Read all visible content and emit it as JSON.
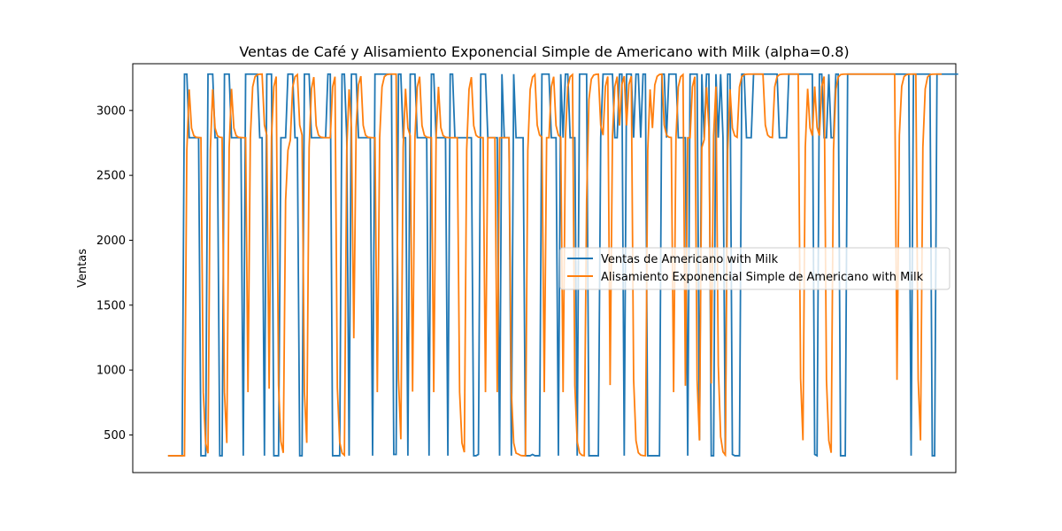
{
  "chart_data": {
    "type": "line",
    "title": "Ventas de Café y Alisamiento Exponencial Simple de Americano with Milk (alpha=0.8)",
    "xlabel": "",
    "ylabel": "Ventas",
    "ylim": [
      210,
      3360
    ],
    "yticks": [
      500,
      1000,
      1500,
      2000,
      2500,
      3000
    ],
    "xlim": [
      -15,
      335
    ],
    "legend_position": "center-right",
    "colors": {
      "raw": "#1f77b4",
      "smoothed": "#ff7f0e"
    },
    "alpha": 0.8,
    "series": [
      {
        "name": "Ventas de Americano with Milk",
        "values": [
          340,
          340,
          340,
          340,
          340,
          340,
          340,
          3280,
          3280,
          2790,
          2790,
          2790,
          2790,
          2790,
          340,
          340,
          340,
          3280,
          3280,
          3280,
          2790,
          2790,
          340,
          340,
          3280,
          3280,
          3280,
          2790,
          2790,
          2790,
          2790,
          2790,
          340,
          3280,
          3280,
          3280,
          3280,
          3280,
          3280,
          2790,
          2790,
          340,
          3280,
          3280,
          3280,
          340,
          340,
          340,
          2790,
          2790,
          2790,
          3280,
          3280,
          3280,
          2790,
          2790,
          340,
          340,
          3280,
          3280,
          3280,
          2790,
          2790,
          2790,
          2790,
          2790,
          2790,
          2790,
          3280,
          3280,
          340,
          340,
          340,
          340,
          3280,
          3280,
          2790,
          340,
          3280,
          3280,
          3280,
          2790,
          2790,
          2790,
          2790,
          2790,
          2790,
          340,
          3280,
          3280,
          3280,
          3280,
          3280,
          3280,
          3280,
          3280,
          350,
          350,
          3280,
          3280,
          2790,
          2790,
          340,
          3280,
          3280,
          3280,
          2790,
          2790,
          2790,
          2790,
          2790,
          340,
          3280,
          3280,
          2790,
          2790,
          2790,
          2790,
          2790,
          340,
          3280,
          3280,
          2790,
          2790,
          2790,
          2790,
          2790,
          2790,
          2790,
          2790,
          340,
          340,
          350,
          3280,
          3280,
          3280,
          2790,
          2790,
          2790,
          2790,
          2790,
          340,
          3280,
          2790,
          2790,
          2790,
          340,
          3280,
          2790,
          2790,
          2790,
          2790,
          340,
          340,
          340,
          350,
          340,
          340,
          340,
          3280,
          3280,
          3280,
          3280,
          2790,
          2790,
          2790,
          340,
          3280,
          2790,
          3280,
          3280,
          2790,
          2790,
          2790,
          340,
          3280,
          3280,
          3280,
          3280,
          340,
          340,
          340,
          340,
          340,
          2790,
          3280,
          3280,
          3280,
          3280,
          3280,
          2790,
          2790,
          3280,
          3280,
          340,
          3280,
          3280,
          3280,
          2790,
          3280,
          3280,
          2790,
          3280,
          3280,
          340,
          340,
          340,
          340,
          340,
          340,
          3280,
          3280,
          2790,
          3280,
          3280,
          3280,
          3280,
          2790,
          2790,
          2790,
          2790,
          340,
          3280,
          3280,
          3280,
          3280,
          460,
          3280,
          2790,
          3280,
          3280,
          340,
          340,
          3280,
          2790,
          3280,
          2790,
          340,
          3280,
          3280,
          350,
          340,
          340,
          340,
          3280,
          3280,
          2790,
          2790,
          2790,
          3280,
          3280,
          3280,
          3280,
          3280,
          3280,
          3280,
          3280,
          3280,
          3280,
          3280,
          2790,
          2790,
          2790,
          2790,
          3280,
          3280,
          3280,
          3280,
          3280,
          3280,
          3280,
          3280,
          3280,
          3280,
          3280,
          350,
          340,
          3280,
          3280,
          2790,
          2790,
          3280,
          2790,
          2790,
          3280,
          3280,
          340,
          340,
          340,
          3280,
          3280,
          3280,
          3280,
          3280,
          3280,
          3280,
          3280,
          3280,
          3280,
          3280,
          3280,
          3280,
          3280,
          3280,
          3280,
          3280,
          3280,
          3280,
          3280,
          3280,
          3280,
          3280,
          3280,
          3280,
          3280,
          3280,
          340,
          3280,
          3280,
          3280,
          3280,
          3280,
          3280,
          3280,
          3280,
          340,
          340,
          3280,
          3280,
          3280,
          3280,
          3280,
          3280,
          3280,
          3280,
          3280,
          3280
        ]
      },
      {
        "name": "Alisamiento Exponencial Simple de Americano with Milk",
        "values": [
          340,
          340,
          340,
          340,
          340,
          340,
          340,
          340,
          2692,
          3162,
          2864,
          2805,
          2793,
          2791,
          2790,
          830,
          438,
          359,
          2696,
          3163,
          2865,
          2805,
          2793,
          2791,
          830,
          438,
          2712,
          3166,
          2865,
          2805,
          2793,
          2791,
          2790,
          2790,
          830,
          2790,
          3182,
          3260,
          3276,
          3279,
          3280,
          2888,
          2810,
          856,
          2795,
          3183,
          3261,
          884,
          449,
          362,
          2304,
          2693,
          2771,
          3178,
          3260,
          3276,
          2887,
          2810,
          834,
          439,
          2712,
          3167,
          3257,
          2884,
          2809,
          2794,
          2791,
          2790,
          2790,
          2790,
          3182,
          3260,
          864,
          445,
          361,
          344,
          2693,
          3163,
          2865,
          1245,
          2873,
          3199,
          3264,
          2885,
          2809,
          2794,
          2791,
          2790,
          2790,
          830,
          2790,
          3182,
          3260,
          3276,
          3279,
          3280,
          3280,
          3280,
          936,
          467,
          2717,
          3167,
          2865,
          2805,
          834,
          2791,
          3182,
          3260,
          2884,
          2809,
          2794,
          2791,
          2790,
          830,
          2790,
          3182,
          2868,
          2806,
          2793,
          2791,
          2790,
          2790,
          2790,
          2790,
          830,
          438,
          367,
          2697,
          3163,
          3257,
          2883,
          2809,
          2794,
          2791,
          2790,
          830,
          2790,
          2790,
          2790,
          2790,
          830,
          2790,
          2790,
          2790,
          2790,
          2790,
          830,
          438,
          360,
          352,
          342,
          340,
          340,
          2692,
          3162,
          3257,
          3276,
          2887,
          2810,
          2794,
          830,
          2790,
          2790,
          3182,
          3260,
          2884,
          2809,
          2794,
          830,
          2790,
          3182,
          3260,
          3276,
          883,
          449,
          362,
          344,
          341,
          2300,
          3084,
          3241,
          3272,
          3278,
          3279,
          2888,
          2810,
          3186,
          3261,
          884,
          2801,
          3184,
          3261,
          2884,
          3201,
          3264,
          2885,
          3201,
          3264,
          925,
          457,
          363,
          345,
          341,
          340,
          2692,
          3162,
          2864,
          3197,
          3263,
          3277,
          3279,
          2888,
          2810,
          2794,
          2791,
          830,
          2790,
          3182,
          3260,
          3276,
          879,
          2790,
          2790,
          3182,
          3260,
          924,
          457,
          2715,
          2775,
          3179,
          2868,
          896,
          2803,
          3184,
          1037,
          487,
          369,
          346,
          2693,
          3163,
          2864,
          2805,
          2793,
          3182,
          3260,
          3276,
          3279,
          3280,
          3280,
          3280,
          3280,
          3280,
          3280,
          3280,
          2888,
          2810,
          2794,
          2791,
          3182,
          3260,
          3276,
          3279,
          3280,
          3280,
          3280,
          3280,
          3280,
          3280,
          3280,
          936,
          459,
          2716,
          3167,
          2865,
          2805,
          3185,
          2869,
          2806,
          3185,
          3261,
          924,
          457,
          363,
          2697,
          3163,
          3257,
          3276,
          3279,
          3280,
          3280,
          3280,
          3280,
          3280,
          3280,
          3280,
          3280,
          3280,
          3280,
          3280,
          3280,
          3280,
          3280,
          3280,
          3280,
          3280,
          3280,
          3280,
          3280,
          3280,
          3280,
          924,
          2809,
          3186,
          3261,
          3276,
          3279,
          3280,
          3280,
          3280,
          928,
          458,
          2716,
          3167,
          3257,
          3276,
          3279,
          3280,
          3280,
          3280,
          3280
        ]
      }
    ]
  }
}
